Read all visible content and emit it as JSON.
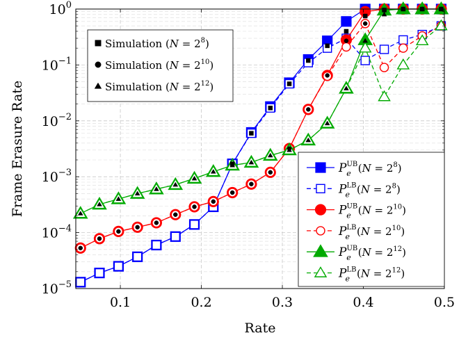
{
  "chart_data": {
    "type": "line",
    "xlabel": "Rate",
    "ylabel": "Frame Erasure Rate",
    "xlim": [
      0.045,
      0.5
    ],
    "ylim": [
      1e-05,
      1
    ],
    "yscale": "log",
    "grid": true,
    "x_ticks": [
      0.1,
      0.2,
      0.3,
      0.4,
      0.5
    ],
    "x_tick_labels": [
      "0.1",
      "0.2",
      "0.3",
      "0.4",
      "0.5"
    ],
    "y_ticks": [
      1e-05,
      0.0001,
      0.001,
      0.01,
      0.1,
      1
    ],
    "y_tick_labels": [
      {
        "base": "10",
        "exp": "−5"
      },
      {
        "base": "10",
        "exp": "−4"
      },
      {
        "base": "10",
        "exp": "−3"
      },
      {
        "base": "10",
        "exp": "−2"
      },
      {
        "base": "10",
        "exp": "−1"
      },
      {
        "base": "10",
        "exp": "0"
      }
    ],
    "x": [
      0.0508,
      0.0742,
      0.0977,
      0.1211,
      0.1445,
      0.168,
      0.1914,
      0.2148,
      0.2383,
      0.2617,
      0.2852,
      0.3086,
      0.332,
      0.3555,
      0.3789,
      0.4023,
      0.4258,
      0.4492,
      0.4727,
      0.4961
    ],
    "series": [
      {
        "name": "P_e^UB(N = 2^8)",
        "color": "#0000ff",
        "marker": "square",
        "filled": true,
        "dashed": false,
        "values": [
          1.3e-05,
          1.9e-05,
          2.5e-05,
          3.7e-05,
          6e-05,
          8.5e-05,
          0.00014,
          0.00029,
          0.0017,
          0.0062,
          0.018,
          0.048,
          0.125,
          0.27,
          0.6,
          1,
          1,
          1,
          1,
          1
        ]
      },
      {
        "name": "P_e^LB(N = 2^8)",
        "color": "#0000ff",
        "marker": "square",
        "filled": false,
        "dashed": true,
        "values": [
          1.3e-05,
          1.9e-05,
          2.5e-05,
          3.7e-05,
          6e-05,
          8.5e-05,
          0.00014,
          0.00029,
          0.0017,
          0.006,
          0.017,
          0.046,
          0.11,
          0.2,
          0.3,
          0.12,
          0.19,
          0.28,
          0.35,
          0.5
        ]
      },
      {
        "name": "P_e^UB(N = 2^10)",
        "color": "#ff0000",
        "marker": "circle",
        "filled": true,
        "dashed": false,
        "values": [
          5.3e-05,
          7.8e-05,
          0.000105,
          0.000125,
          0.00015,
          0.00021,
          0.00029,
          0.00036,
          0.00052,
          0.00074,
          0.0012,
          0.0032,
          0.016,
          0.065,
          0.28,
          0.9,
          1,
          1,
          1,
          1
        ]
      },
      {
        "name": "P_e^LB(N = 2^10)",
        "color": "#ff0000",
        "marker": "circle",
        "filled": false,
        "dashed": true,
        "values": [
          5.3e-05,
          7.8e-05,
          0.000105,
          0.000125,
          0.00015,
          0.00021,
          0.00029,
          0.00036,
          0.00052,
          0.00074,
          0.0012,
          0.0032,
          0.016,
          0.063,
          0.21,
          0.55,
          0.09,
          0.2,
          0.33,
          0.5
        ]
      },
      {
        "name": "P_e^UB(N = 2^12)",
        "color": "#00aa00",
        "marker": "triangle",
        "filled": true,
        "dashed": false,
        "values": [
          0.00022,
          0.00032,
          0.0004,
          0.0005,
          0.0006,
          0.00072,
          0.00093,
          0.00123,
          0.0016,
          0.0018,
          0.0024,
          0.003,
          0.0045,
          0.009,
          0.038,
          0.28,
          0.95,
          1,
          1,
          1
        ]
      },
      {
        "name": "P_e^LB(N = 2^12)",
        "color": "#00aa00",
        "marker": "triangle",
        "filled": false,
        "dashed": true,
        "values": [
          0.00022,
          0.00032,
          0.0004,
          0.0005,
          0.0006,
          0.00072,
          0.00093,
          0.00123,
          0.0016,
          0.0018,
          0.0024,
          0.003,
          0.0045,
          0.009,
          0.038,
          0.2,
          0.027,
          0.1,
          0.27,
          0.5
        ]
      }
    ],
    "simulation": [
      {
        "name": "Simulation (N = 2^8)",
        "marker": "square",
        "color": "#000000",
        "x": [
          0.2383,
          0.2617,
          0.2852,
          0.3086,
          0.332,
          0.3555,
          0.3789,
          0.4023,
          0.4258,
          0.4492,
          0.4727,
          0.4961
        ],
        "values": [
          0.0017,
          0.006,
          0.017,
          0.046,
          0.12,
          0.22,
          0.4,
          0.75,
          0.96,
          1,
          1,
          1
        ]
      },
      {
        "name": "Simulation (N = 2^10)",
        "marker": "circle",
        "color": "#000000",
        "x": [
          0.0508,
          0.0742,
          0.0977,
          0.1211,
          0.1445,
          0.168,
          0.1914,
          0.2148,
          0.2383,
          0.2617,
          0.2852,
          0.3086,
          0.332,
          0.3555,
          0.3789,
          0.4023,
          0.4258,
          0.4492,
          0.4727,
          0.4961
        ],
        "values": [
          5.3e-05,
          7.8e-05,
          0.000105,
          0.000125,
          0.00015,
          0.00021,
          0.00029,
          0.00036,
          0.00052,
          0.00074,
          0.0012,
          0.0032,
          0.016,
          0.065,
          0.27,
          0.55,
          0.95,
          1,
          1,
          1
        ]
      },
      {
        "name": "Simulation (N = 2^12)",
        "marker": "triangle",
        "color": "#000000",
        "x": [
          0.0508,
          0.0742,
          0.0977,
          0.1211,
          0.1445,
          0.168,
          0.1914,
          0.2148,
          0.2383,
          0.2617,
          0.2852,
          0.3086,
          0.332,
          0.3555,
          0.3789,
          0.4023,
          0.4258,
          0.4492,
          0.4727,
          0.4961
        ],
        "values": [
          0.00022,
          0.00032,
          0.0004,
          0.0005,
          0.0006,
          0.00072,
          0.00093,
          0.00123,
          0.0016,
          0.0018,
          0.0024,
          0.003,
          0.0045,
          0.009,
          0.038,
          0.27,
          0.8,
          1,
          1,
          1
        ]
      }
    ],
    "legend_simulation": {
      "placement": "top-left",
      "entries": [
        {
          "marker": "square",
          "label_prefix": "Simulation (",
          "var": "N",
          "eq": " = ",
          "base": "2",
          "exp": "8",
          "label_suffix": ")"
        },
        {
          "marker": "circle",
          "label_prefix": "Simulation (",
          "var": "N",
          "eq": " = ",
          "base": "2",
          "exp": "10",
          "label_suffix": ")"
        },
        {
          "marker": "triangle",
          "label_prefix": "Simulation (",
          "var": "N",
          "eq": " = ",
          "base": "2",
          "exp": "12",
          "label_suffix": ")"
        }
      ]
    },
    "legend_bounds": {
      "placement": "bottom-right",
      "entries": [
        {
          "series": 0,
          "sym": "P",
          "sub": "e",
          "sup": "UB",
          "open": "(",
          "var": "N",
          "eq": " = ",
          "base": "2",
          "exp": "8",
          "close": ")"
        },
        {
          "series": 1,
          "sym": "P",
          "sub": "e",
          "sup": "LB",
          "open": "(",
          "var": "N",
          "eq": " = ",
          "base": "2",
          "exp": "8",
          "close": ")"
        },
        {
          "series": 2,
          "sym": "P",
          "sub": "e",
          "sup": "UB",
          "open": "(",
          "var": "N",
          "eq": " = ",
          "base": "2",
          "exp": "10",
          "close": ")"
        },
        {
          "series": 3,
          "sym": "P",
          "sub": "e",
          "sup": "LB",
          "open": "(",
          "var": "N",
          "eq": " = ",
          "base": "2",
          "exp": "10",
          "close": ")"
        },
        {
          "series": 4,
          "sym": "P",
          "sub": "e",
          "sup": "UB",
          "open": "(",
          "var": "N",
          "eq": " = ",
          "base": "2",
          "exp": "12",
          "close": ")"
        },
        {
          "series": 5,
          "sym": "P",
          "sub": "e",
          "sup": "LB",
          "open": "(",
          "var": "N",
          "eq": " = ",
          "base": "2",
          "exp": "12",
          "close": ")"
        }
      ]
    }
  }
}
